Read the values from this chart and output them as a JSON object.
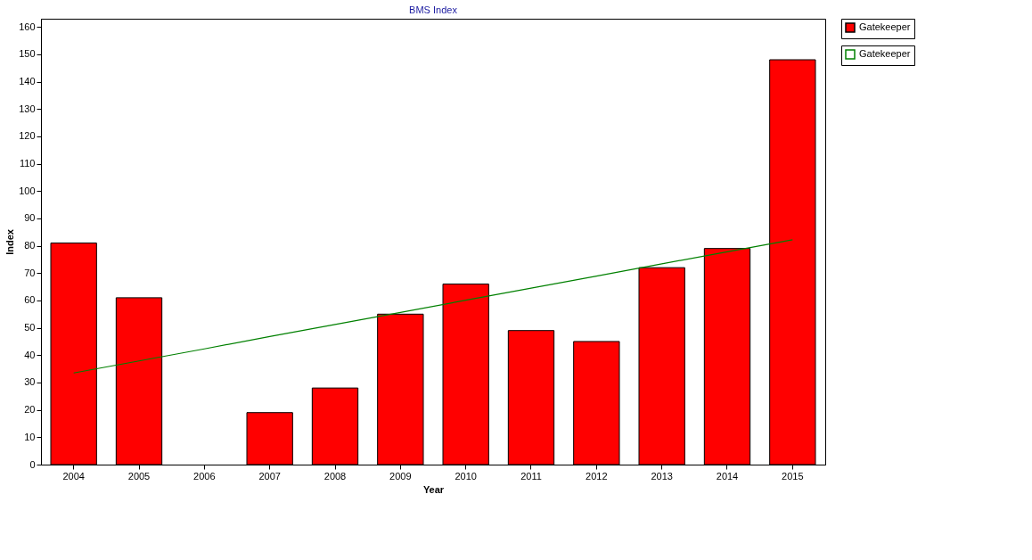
{
  "chart_data": {
    "type": "bar",
    "title": "BMS Index",
    "xlabel": "Year",
    "ylabel": "Index",
    "categories": [
      "2004",
      "2005",
      "2006",
      "2007",
      "2008",
      "2009",
      "2010",
      "2011",
      "2012",
      "2013",
      "2014",
      "2015"
    ],
    "series": [
      {
        "name": "Gatekeeper",
        "color": "#ff0000",
        "values": [
          81,
          61,
          null,
          19,
          28,
          55,
          66,
          49,
          45,
          72,
          79,
          148
        ]
      },
      {
        "name": "Gatekeeper",
        "type": "line",
        "color": "#008000",
        "values": [
          33.5,
          37.9,
          42.3,
          46.8,
          51.2,
          55.6,
          60.1,
          64.5,
          68.9,
          73.4,
          77.8,
          82.2
        ]
      }
    ],
    "ylim": [
      0,
      163
    ],
    "yticks": [
      0,
      10,
      20,
      30,
      40,
      50,
      60,
      70,
      80,
      90,
      100,
      110,
      120,
      130,
      140,
      150,
      160
    ],
    "grid": false,
    "legend": "top right"
  }
}
